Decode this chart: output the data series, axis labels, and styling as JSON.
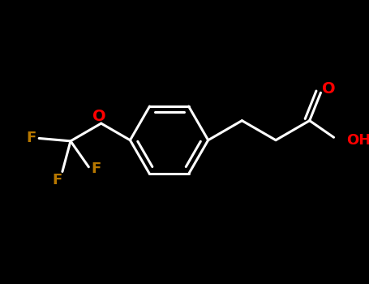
{
  "background_color": "#000000",
  "bond_color": "#ffffff",
  "bond_width": 2.2,
  "atom_colors": {
    "O": "#ff0000",
    "F": "#b87800",
    "C": "#ffffff"
  },
  "figsize": [
    4.55,
    3.5
  ],
  "dpi": 100,
  "xlim": [
    0,
    9.1
  ],
  "ylim": [
    0,
    7.0
  ]
}
